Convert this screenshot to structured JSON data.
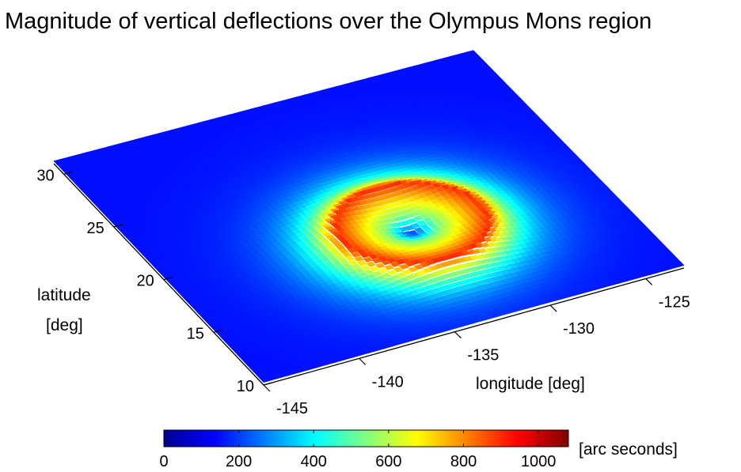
{
  "chart_data": {
    "type": "heatmap",
    "title": "Magnitude of vertical deflections over the  Olympus Mons region",
    "xlabel": "longitude [deg]",
    "ylabel_lines": [
      "latitude",
      "[deg]"
    ],
    "x_ticks": [
      "-145",
      "-140",
      "-135",
      "-130",
      "-125"
    ],
    "x_tick_values": [
      -145,
      -140,
      -135,
      -130,
      -125
    ],
    "y_ticks": [
      "10",
      "15",
      "20",
      "25",
      "30"
    ],
    "y_tick_values": [
      10,
      15,
      20,
      25,
      30
    ],
    "xlim": [
      -145,
      -123
    ],
    "ylim": [
      10,
      31
    ],
    "colorbar": {
      "label": "[arc seconds]",
      "ticks": [
        "0",
        "200",
        "400",
        "600",
        "800",
        "1000"
      ],
      "tick_values": [
        0,
        200,
        400,
        600,
        800,
        1000
      ],
      "range": [
        0,
        1080
      ],
      "colormap": "jet",
      "colors": [
        "#00008f",
        "#0000ff",
        "#0080ff",
        "#00ffff",
        "#80ff80",
        "#ffff00",
        "#ff8000",
        "#ff0000",
        "#800000"
      ]
    },
    "features": {
      "caldera_center": {
        "lon": -133,
        "lat": 18
      },
      "caldera_value": 180,
      "rim_value": 900,
      "background_value": 150
    }
  }
}
